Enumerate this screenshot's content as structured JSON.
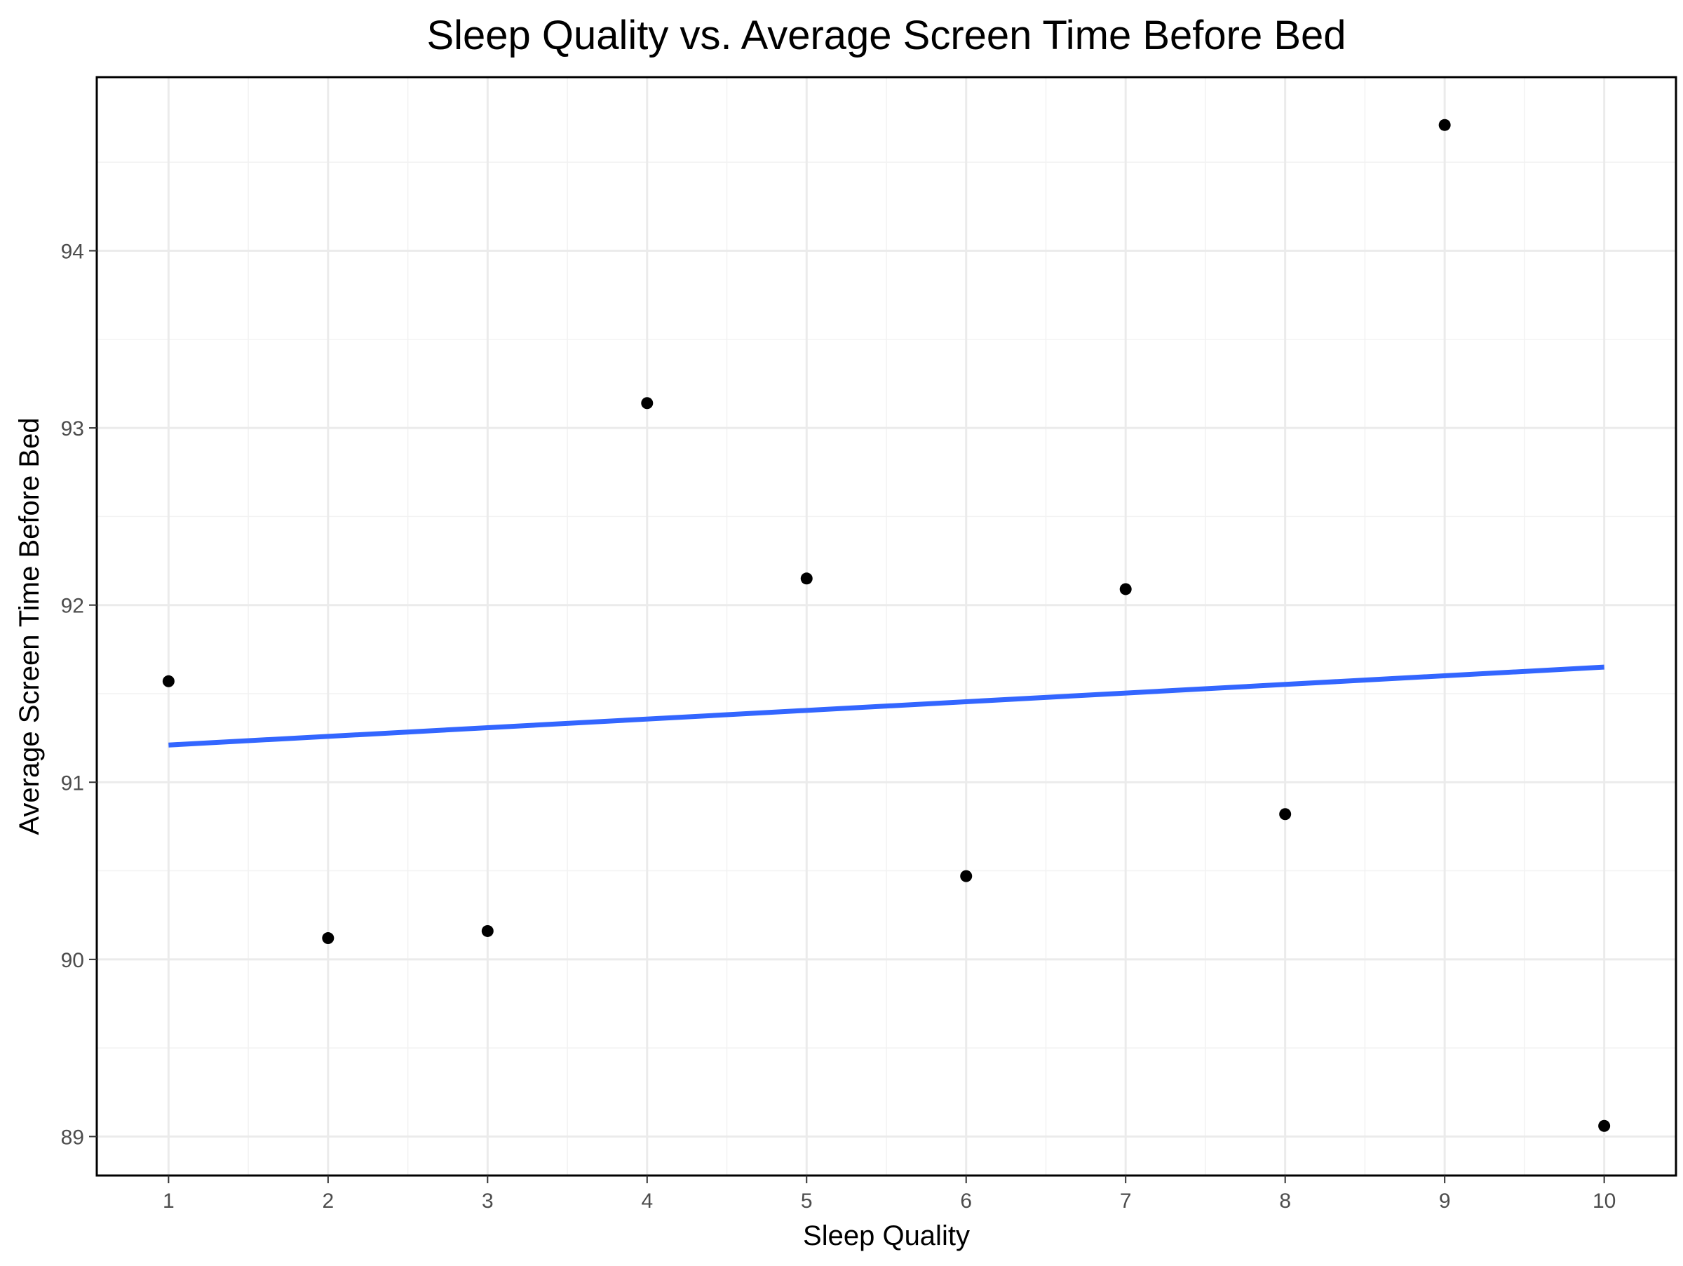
{
  "chart_data": {
    "type": "scatter",
    "title": "Sleep Quality vs. Average Screen Time Before Bed",
    "xlabel": "Sleep Quality",
    "ylabel": "Average Screen Time Before Bed",
    "xlim": [
      0.55,
      10.45
    ],
    "ylim": [
      88.78,
      94.98
    ],
    "x_ticks": [
      1,
      2,
      3,
      4,
      5,
      6,
      7,
      8,
      9,
      10
    ],
    "y_ticks": [
      89,
      90,
      91,
      92,
      93,
      94
    ],
    "grid": true,
    "legend": "none",
    "points": {
      "x": [
        1,
        2,
        3,
        4,
        5,
        6,
        7,
        8,
        9,
        10
      ],
      "y": [
        91.57,
        90.12,
        90.16,
        93.14,
        92.15,
        90.47,
        92.09,
        90.82,
        94.71,
        89.06
      ]
    },
    "point_color": "#000000",
    "trend_line": {
      "x": [
        1,
        10
      ],
      "y": [
        91.21,
        91.65
      ],
      "color": "#3366ff"
    }
  }
}
